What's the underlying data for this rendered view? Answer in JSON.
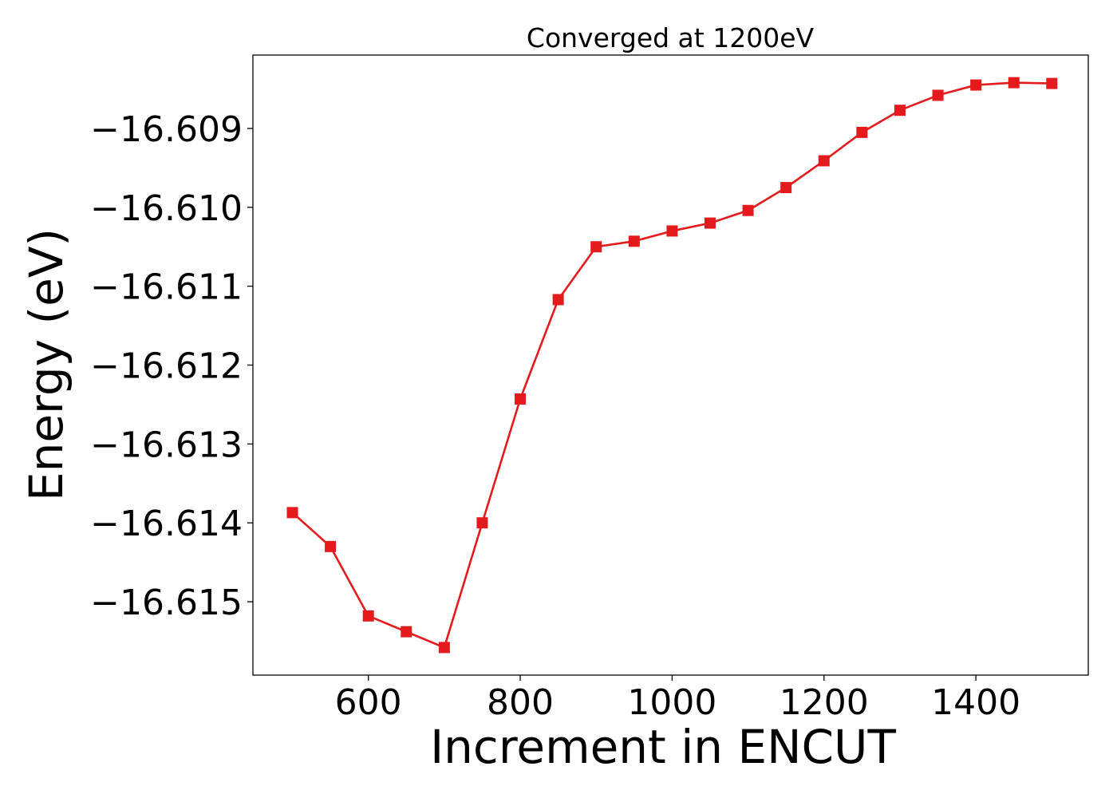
{
  "chart_data": {
    "type": "line",
    "title": "Converged at 1200eV",
    "xlabel": "Increment in ENCUT",
    "ylabel": "Energy (eV)",
    "x": [
      500,
      550,
      600,
      650,
      700,
      750,
      800,
      850,
      900,
      950,
      1000,
      1050,
      1100,
      1150,
      1200,
      1250,
      1300,
      1350,
      1400,
      1450,
      1500
    ],
    "series": [
      {
        "values": [
          -16.61387,
          -16.6143,
          -16.61518,
          -16.61538,
          -16.61558,
          -16.614,
          -16.61243,
          -16.61117,
          -16.6105,
          -16.61043,
          -16.6103,
          -16.6102,
          -16.61004,
          -16.60975,
          -16.60941,
          -16.60905,
          -16.60877,
          -16.60858,
          -16.60845,
          -16.60842,
          -16.60843
        ],
        "color": "#e41a1c",
        "marker": "square"
      }
    ],
    "xlim": [
      448,
      1548
    ],
    "ylim": [
      -16.61593,
      -16.60807
    ],
    "xticks": [
      600,
      800,
      1000,
      1200,
      1400
    ],
    "xtick_labels": [
      "600",
      "800",
      "1000",
      "1200",
      "1400"
    ],
    "yticks": [
      -16.615,
      -16.614,
      -16.613,
      -16.612,
      -16.611,
      -16.61,
      -16.609
    ],
    "ytick_labels": [
      "−16.615",
      "−16.614",
      "−16.613",
      "−16.612",
      "−16.611",
      "−16.610",
      "−16.609"
    ],
    "grid": false,
    "legend": "none"
  }
}
